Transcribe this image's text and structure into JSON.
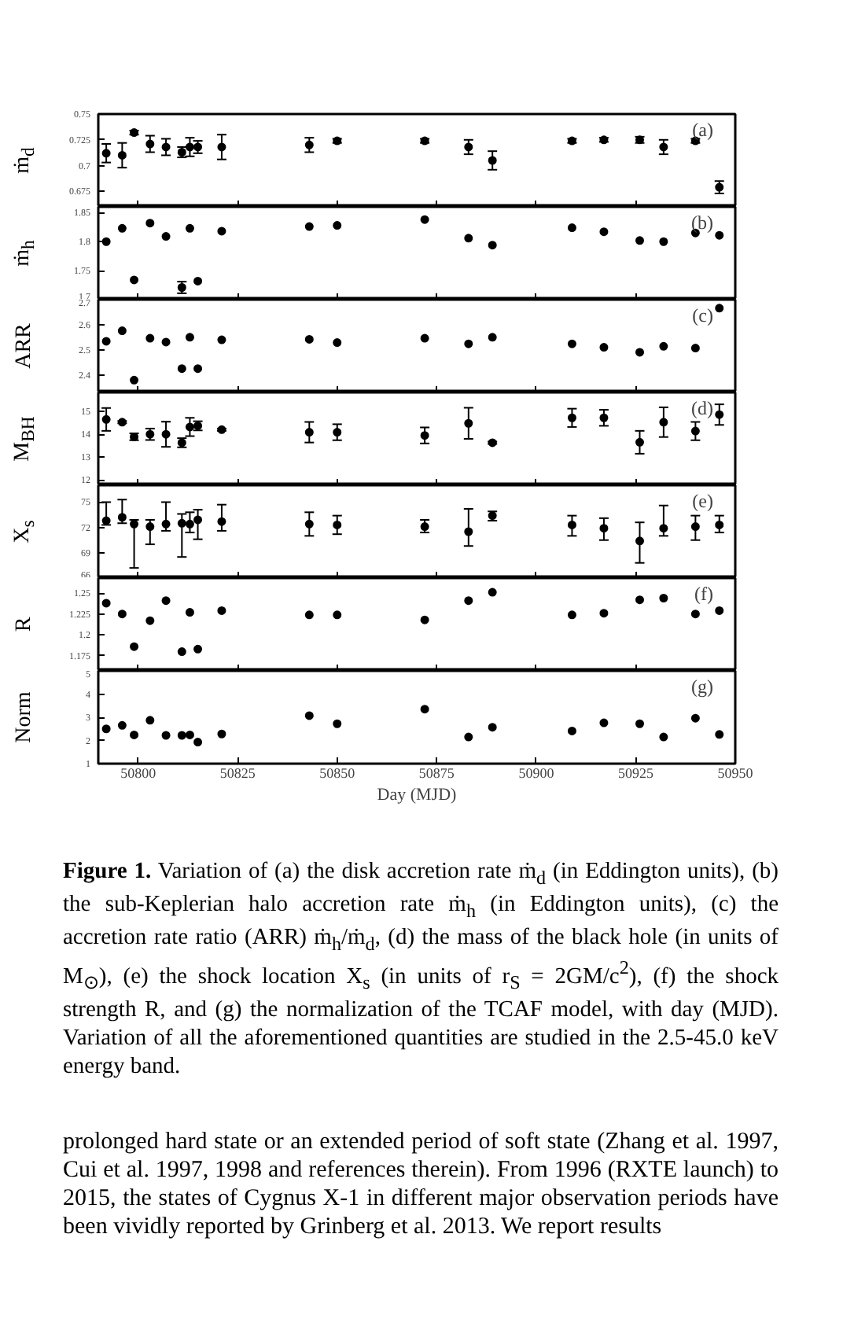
{
  "chart_data": [
    {
      "type": "scatter",
      "ylabel": "ṁ$_{d}$",
      "annotations": [
        "(a)"
      ],
      "marker": "circle",
      "color": "#000000",
      "tick_labels": "y",
      "xlim": [
        50790,
        50950
      ],
      "xticks": [
        50800,
        50825,
        50850,
        50875,
        50900,
        50925,
        50950
      ],
      "ylim": [
        0.66,
        0.75
      ],
      "yticks": [
        0.675,
        0.7,
        0.725,
        0.75
      ],
      "x": [
        50792,
        50796,
        50799,
        50803,
        50807,
        50811,
        50813,
        50815,
        50821,
        50843,
        50850,
        50872,
        50883,
        50889,
        50909,
        50917,
        50926,
        50932,
        50940,
        50946
      ],
      "values": [
        0.712,
        0.71,
        0.732,
        0.721,
        0.718,
        0.713,
        0.718,
        0.718,
        0.718,
        0.72,
        0.724,
        0.724,
        0.718,
        0.705,
        0.724,
        0.725,
        0.725,
        0.718,
        0.724,
        0.679
      ],
      "errors": [
        0.009,
        0.012,
        0.002,
        0.008,
        0.008,
        0.005,
        0.009,
        0.006,
        0.012,
        0.007,
        0.002,
        0.002,
        0.007,
        0.009,
        0.002,
        0.002,
        0.003,
        0.007,
        0.002,
        0.006
      ]
    },
    {
      "type": "scatter",
      "ylabel": "ṁ$_{h}$",
      "annotations": [
        "(b)"
      ],
      "marker": "circle",
      "color": "#000000",
      "tick_labels": "y",
      "xlim": [
        50790,
        50950
      ],
      "xticks": [
        50800,
        50825,
        50850,
        50875,
        50900,
        50925,
        50950
      ],
      "ylim": [
        1.7,
        1.86
      ],
      "yticks": [
        1.7,
        1.75,
        1.8,
        1.85
      ],
      "x": [
        50792,
        50796,
        50799,
        50803,
        50807,
        50811,
        50813,
        50815,
        50821,
        50843,
        50850,
        50872,
        50883,
        50889,
        50909,
        50917,
        50926,
        50932,
        50940,
        50946
      ],
      "values": [
        1.8,
        1.823,
        1.734,
        1.832,
        1.809,
        1.721,
        1.823,
        1.732,
        1.818,
        1.826,
        1.828,
        1.838,
        1.806,
        1.794,
        1.824,
        1.817,
        1.802,
        1.8,
        1.815,
        1.811
      ],
      "errors": [
        null,
        null,
        null,
        null,
        null,
        0.01,
        null,
        null,
        null,
        null,
        null,
        null,
        null,
        null,
        null,
        null,
        null,
        null,
        null,
        null
      ]
    },
    {
      "type": "scatter",
      "ylabel": "ARR",
      "annotations": [
        "(c)"
      ],
      "marker": "circle",
      "color": "#000000",
      "tick_labels": "y",
      "xlim": [
        50790,
        50950
      ],
      "xticks": [
        50800,
        50825,
        50850,
        50875,
        50900,
        50925,
        50950
      ],
      "ylim": [
        2.33,
        2.7
      ],
      "yticks": [
        2.4,
        2.5,
        2.6,
        2.7
      ],
      "x": [
        50792,
        50796,
        50799,
        50803,
        50807,
        50811,
        50813,
        50815,
        50821,
        50843,
        50850,
        50872,
        50883,
        50889,
        50909,
        50917,
        50926,
        50932,
        50940,
        50946
      ],
      "values": [
        2.534,
        2.576,
        2.379,
        2.546,
        2.531,
        2.425,
        2.55,
        2.425,
        2.54,
        2.542,
        2.529,
        2.546,
        2.524,
        2.55,
        2.524,
        2.51,
        2.49,
        2.514,
        2.507,
        2.666
      ]
    },
    {
      "type": "scatter",
      "ylabel": "M$_{BH}$",
      "annotations": [
        "(d)"
      ],
      "marker": "circle",
      "color": "#000000",
      "tick_labels": "y",
      "xlim": [
        50790,
        50950
      ],
      "xticks": [
        50800,
        50825,
        50850,
        50875,
        50900,
        50925,
        50950
      ],
      "ylim": [
        11.77,
        15.83
      ],
      "yticks": [
        12,
        13,
        14,
        15
      ],
      "x": [
        50792,
        50796,
        50799,
        50803,
        50807,
        50811,
        50813,
        50815,
        50821,
        50843,
        50850,
        50872,
        50883,
        50889,
        50909,
        50917,
        50926,
        50932,
        50940,
        50946
      ],
      "values": [
        14.65,
        14.53,
        13.89,
        14.0,
        14.0,
        13.63,
        14.32,
        14.37,
        14.2,
        14.09,
        14.09,
        13.95,
        14.48,
        13.63,
        14.72,
        14.72,
        13.65,
        14.53,
        14.14,
        14.86
      ],
      "errors": [
        0.5,
        0.05,
        0.15,
        0.25,
        0.55,
        0.2,
        0.4,
        0.2,
        0.05,
        0.45,
        0.35,
        0.35,
        0.68,
        0.05,
        0.4,
        0.35,
        0.5,
        0.65,
        0.4,
        0.45
      ]
    },
    {
      "type": "scatter",
      "ylabel": "X$_{s}$",
      "annotations": [
        "(e)"
      ],
      "marker": "circle",
      "color": "#000000",
      "tick_labels": "y",
      "xlim": [
        50790,
        50950
      ],
      "xticks": [
        50800,
        50825,
        50850,
        50875,
        50900,
        50925,
        50950
      ],
      "ylim": [
        66,
        77
      ],
      "yticks": [
        66,
        69,
        72,
        75
      ],
      "x": [
        50792,
        50796,
        50799,
        50803,
        50807,
        50811,
        50813,
        50815,
        50821,
        50843,
        50850,
        50872,
        50883,
        50889,
        50909,
        50917,
        50926,
        50932,
        50940,
        50946
      ],
      "values": [
        72.8,
        73.2,
        72.4,
        72.1,
        72.4,
        72.5,
        72.4,
        72.9,
        72.7,
        72.4,
        72.3,
        72.1,
        71.5,
        73.4,
        72.3,
        71.9,
        70.4,
        71.9,
        72.1,
        72.3
      ],
      "errors": [
        [
          72.3,
          75.0
        ],
        [
          72.5,
          75.3
        ],
        [
          67.2,
          72.9
        ],
        [
          70.0,
          72.9
        ],
        [
          71.6,
          75.0
        ],
        [
          68.5,
          73.6
        ],
        [
          71.4,
          73.8
        ],
        [
          70.6,
          74.1
        ],
        [
          71.6,
          74.7
        ],
        [
          71.0,
          73.8
        ],
        [
          71.2,
          73.4
        ],
        [
          71.4,
          72.9
        ],
        [
          69.8,
          74.2
        ],
        [
          72.8,
          73.9
        ],
        [
          71.0,
          73.4
        ],
        [
          70.5,
          73.1
        ],
        [
          67.8,
          72.6
        ],
        [
          71.0,
          74.6
        ],
        [
          70.5,
          73.4
        ],
        [
          71.4,
          73.4
        ]
      ]
    },
    {
      "type": "scatter",
      "ylabel": "R",
      "annotations": [
        "(f)"
      ],
      "marker": "circle",
      "color": "#000000",
      "tick_labels": "y",
      "xlim": [
        50790,
        50950
      ],
      "xticks": [
        50800,
        50825,
        50850,
        50875,
        50900,
        50925,
        50950
      ],
      "ylim": [
        1.157,
        1.268
      ],
      "yticks": [
        1.175,
        1.2,
        1.225,
        1.25
      ],
      "x": [
        50792,
        50796,
        50799,
        50803,
        50807,
        50811,
        50813,
        50815,
        50821,
        50843,
        50850,
        50872,
        50883,
        50889,
        50909,
        50917,
        50926,
        50932,
        50940,
        50946
      ],
      "values": [
        1.238,
        1.225,
        1.186,
        1.217,
        1.241,
        1.18,
        1.227,
        1.183,
        1.229,
        1.224,
        1.224,
        1.218,
        1.241,
        1.251,
        1.224,
        1.226,
        1.242,
        1.244,
        1.225,
        1.229
      ]
    },
    {
      "type": "scatter",
      "ylabel": "Norm",
      "xlabel": "Day (MJD)",
      "marker": "circle",
      "color": "#000000",
      "xlim": [
        50790,
        50950
      ],
      "xticks": [
        50800,
        50825,
        50850,
        50875,
        50900,
        50925,
        50950
      ],
      "ylim": [
        1,
        5
      ],
      "yticks": [
        1,
        2,
        3,
        4,
        5
      ],
      "x": [
        50792,
        50796,
        50799,
        50803,
        50807,
        50811,
        50813,
        50815,
        50821,
        50843,
        50850,
        50872,
        50883,
        50889,
        50909,
        50917,
        50926,
        50932,
        50940,
        50946
      ],
      "values": [
        2.5,
        2.65,
        2.24,
        2.87,
        2.22,
        2.22,
        2.24,
        1.93,
        2.28,
        3.07,
        2.72,
        3.35,
        2.15,
        2.57,
        2.41,
        2.76,
        2.72,
        2.15,
        2.96,
        2.26
      ],
      "annotations": [
        "(g)",
        "Figure 1. Variation of (a) the disk accretion rate ṁ$_{d}$ (in Eddington units), (b) the sub-Keplerian halo accretion rate ṁ$_{h}$ (in Eddington units), (c) the accretion rate ratio (ARR) ṁ$_{h}$/ṁ$_{d}$, (d) the mass of the black hole (in units of M$_{⊙}$), (e) the shock location X$_{s}$ (in units of r$_{S}$ = 2GM/c$^{2}$), (f) the shock strength R, and (g) the normalization of the TCAF model, with day (MJD). Variation of all the aforementioned quantities are studied in the 2.5-45.0 keV energy band.",
        "prolonged hard state or an extended period of soft state (Zhang et al. 1997, Cui et al. 1997, 1998 and references therein). From 1996 (RXTE launch) to 2015, the states of Cygnus X-1 in different major observation periods have been vividly reported by Grinberg et al. 2013. We report results"
      ]
    }
  ]
}
